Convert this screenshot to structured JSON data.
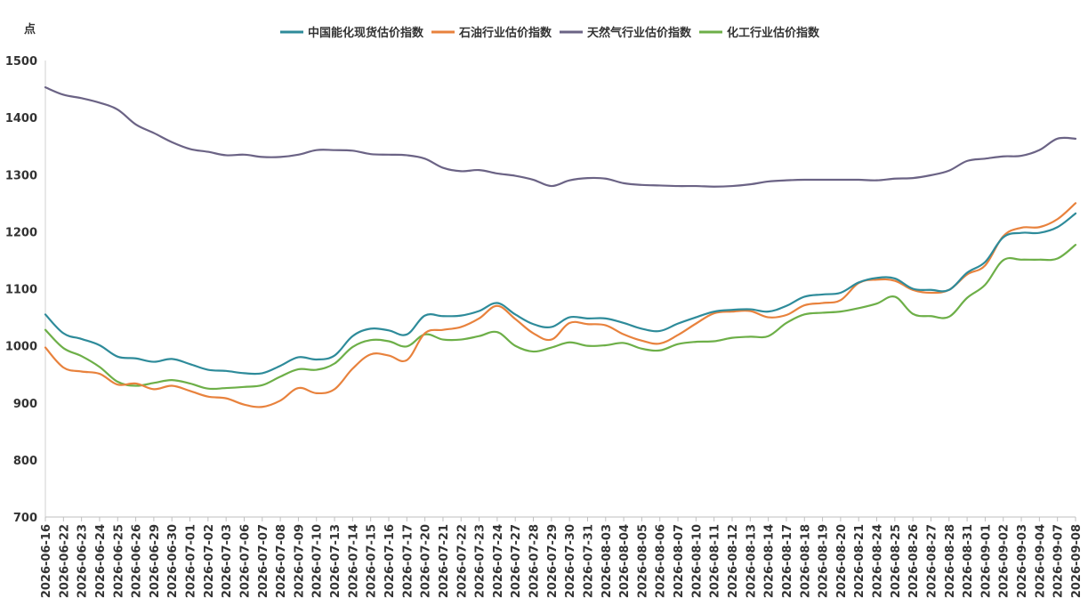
{
  "chart_data": {
    "type": "line",
    "ylabel": "点",
    "ylim": [
      700,
      1500
    ],
    "yticks": [
      700,
      800,
      900,
      1000,
      1100,
      1200,
      1300,
      1400,
      1500
    ],
    "grid": false,
    "legend_position": "top-center",
    "x": [
      "2026-06-16",
      "2026-06-22",
      "2026-06-23",
      "2026-06-24",
      "2026-06-25",
      "2026-06-26",
      "2026-06-29",
      "2026-06-30",
      "2026-07-01",
      "2026-07-02",
      "2026-07-03",
      "2026-07-06",
      "2026-07-07",
      "2026-07-08",
      "2026-07-09",
      "2026-07-10",
      "2026-07-13",
      "2026-07-14",
      "2026-07-15",
      "2026-07-16",
      "2026-07-17",
      "2026-07-20",
      "2026-07-21",
      "2026-07-22",
      "2026-07-23",
      "2026-07-24",
      "2026-07-27",
      "2026-07-28",
      "2026-07-29",
      "2026-07-30",
      "2026-07-31",
      "2026-08-03",
      "2026-08-04",
      "2026-08-05",
      "2026-08-06",
      "2026-08-07",
      "2026-08-10",
      "2026-08-11",
      "2026-08-12",
      "2026-08-13",
      "2026-08-14",
      "2026-08-17",
      "2026-08-18",
      "2026-08-19",
      "2026-08-20",
      "2026-08-21",
      "2026-08-24",
      "2026-08-25",
      "2026-08-26",
      "2026-08-27",
      "2026-08-28",
      "2026-08-31",
      "2026-09-01",
      "2026-09-02",
      "2026-09-03",
      "2026-09-04",
      "2026-09-07",
      "2026-09-08"
    ],
    "series": [
      {
        "name": "中国能化现货估价指数",
        "color": "#2E8B9A",
        "values": [
          1055,
          1022,
          1012,
          1001,
          981,
          978,
          972,
          977,
          968,
          958,
          956,
          952,
          952,
          965,
          980,
          976,
          983,
          1017,
          1030,
          1027,
          1020,
          1053,
          1052,
          1053,
          1061,
          1075,
          1055,
          1038,
          1033,
          1050,
          1048,
          1048,
          1040,
          1030,
          1026,
          1039,
          1050,
          1060,
          1063,
          1064,
          1060,
          1070,
          1086,
          1090,
          1093,
          1111,
          1119,
          1118,
          1100,
          1098,
          1098,
          1128,
          1147,
          1190,
          1198,
          1198,
          1208,
          1232
        ]
      },
      {
        "name": "石油行业估价指数",
        "color": "#E8823D",
        "values": [
          997,
          962,
          955,
          951,
          932,
          934,
          924,
          930,
          921,
          911,
          908,
          897,
          893,
          904,
          926,
          917,
          924,
          960,
          985,
          983,
          975,
          1022,
          1028,
          1033,
          1048,
          1070,
          1047,
          1022,
          1011,
          1040,
          1038,
          1036,
          1020,
          1009,
          1004,
          1019,
          1039,
          1057,
          1060,
          1061,
          1050,
          1054,
          1071,
          1075,
          1080,
          1110,
          1116,
          1114,
          1098,
          1093,
          1098,
          1125,
          1141,
          1192,
          1207,
          1208,
          1222,
          1250
        ]
      },
      {
        "name": "天然气行业估价指数",
        "color": "#6B6385",
        "values": [
          1453,
          1440,
          1434,
          1426,
          1414,
          1388,
          1373,
          1357,
          1345,
          1340,
          1334,
          1335,
          1331,
          1331,
          1335,
          1343,
          1343,
          1342,
          1336,
          1335,
          1334,
          1328,
          1312,
          1306,
          1308,
          1302,
          1298,
          1291,
          1280,
          1290,
          1294,
          1293,
          1285,
          1282,
          1281,
          1280,
          1280,
          1279,
          1280,
          1283,
          1288,
          1290,
          1291,
          1291,
          1291,
          1291,
          1290,
          1293,
          1294,
          1299,
          1307,
          1324,
          1328,
          1332,
          1333,
          1343,
          1363,
          1363
        ]
      },
      {
        "name": "化工行业估价指数",
        "color": "#6DAF48",
        "values": [
          1028,
          996,
          982,
          963,
          937,
          930,
          935,
          940,
          934,
          925,
          926,
          928,
          931,
          946,
          959,
          958,
          969,
          998,
          1010,
          1008,
          999,
          1020,
          1011,
          1011,
          1017,
          1024,
          1000,
          990,
          997,
          1006,
          1000,
          1001,
          1005,
          995,
          992,
          1003,
          1007,
          1008,
          1014,
          1016,
          1017,
          1040,
          1055,
          1058,
          1060,
          1066,
          1074,
          1086,
          1056,
          1052,
          1051,
          1084,
          1107,
          1150,
          1151,
          1151,
          1153,
          1177
        ]
      }
    ]
  }
}
